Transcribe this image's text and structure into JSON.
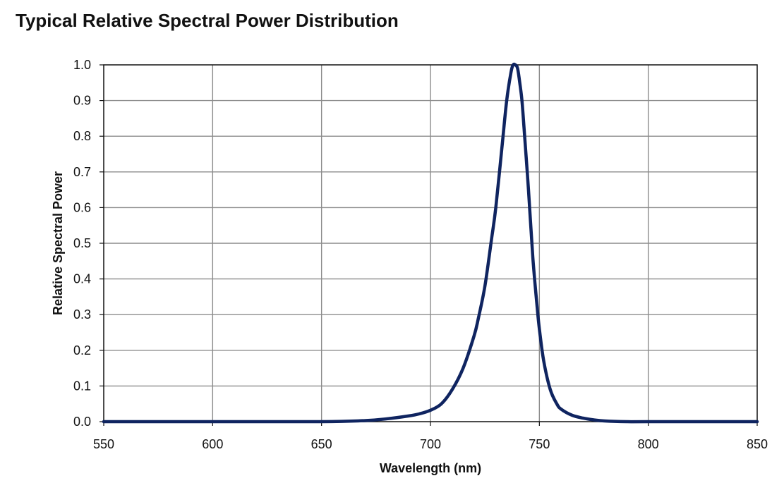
{
  "chart_data": {
    "type": "line",
    "title": "Typical Relative Spectral Power Distribution",
    "xlabel": "Wavelength (nm)",
    "ylabel": "Relative Spectral Power",
    "xlim": [
      550,
      850
    ],
    "ylim": [
      0,
      1.0
    ],
    "x_ticks": [
      "550",
      "600",
      "650",
      "700",
      "750",
      "800",
      "850"
    ],
    "y_ticks": [
      "0.0",
      "0.1",
      "0.2",
      "0.3",
      "0.4",
      "0.5",
      "0.6",
      "0.7",
      "0.8",
      "0.9",
      "1.0"
    ],
    "grid": true,
    "legend": "none",
    "line_color": "#0f2460",
    "series": [
      {
        "x": [
          550,
          600,
          650,
          670,
          680,
          690,
          695,
          700,
          705,
          710,
          715,
          720,
          722,
          725,
          728,
          730,
          733,
          735,
          737,
          738,
          739,
          740,
          741,
          742,
          743,
          745,
          747,
          749,
          750,
          752,
          755,
          758,
          760,
          765,
          770,
          775,
          780,
          790,
          800,
          850
        ],
        "y": [
          0.0,
          0.0,
          0.0,
          0.003,
          0.008,
          0.016,
          0.022,
          0.032,
          0.05,
          0.09,
          0.15,
          0.24,
          0.29,
          0.38,
          0.51,
          0.6,
          0.78,
          0.9,
          0.98,
          1.0,
          1.0,
          0.99,
          0.95,
          0.9,
          0.82,
          0.65,
          0.46,
          0.32,
          0.26,
          0.17,
          0.09,
          0.05,
          0.035,
          0.018,
          0.01,
          0.005,
          0.002,
          0.0,
          0.0,
          0.0
        ]
      }
    ]
  }
}
